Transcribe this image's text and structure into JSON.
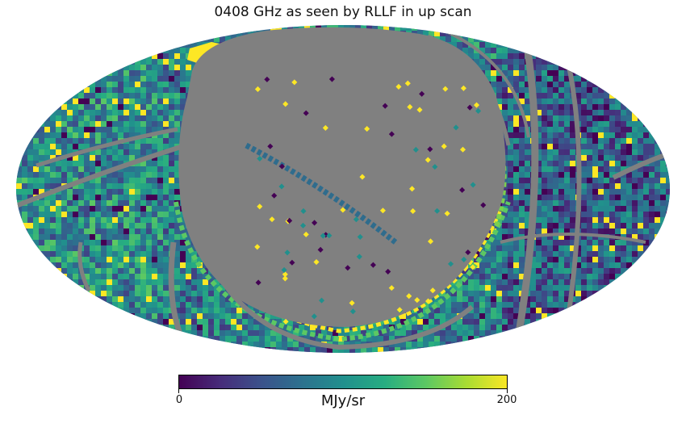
{
  "title": "0408 GHz as seen by RLLF in up scan",
  "colorbar": {
    "min_label": "0",
    "max_label": "200",
    "units": "MJy/sr",
    "colormap": [
      "#440154",
      "#472c7a",
      "#3b528b",
      "#2c728e",
      "#21908d",
      "#27ad81",
      "#5cc863",
      "#aadc32",
      "#fde725"
    ]
  },
  "map": {
    "projection": "mollweide",
    "masked_color": "#808080"
  }
}
